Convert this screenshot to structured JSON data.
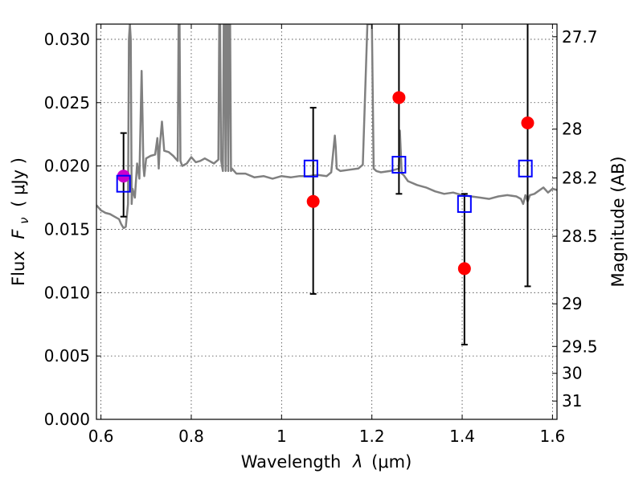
{
  "chart_data": {
    "type": "scatter",
    "title": "",
    "xlabel_text": "Wavelength",
    "xlabel_symbol": "λ",
    "xlabel_unit": "(μm)",
    "ylabel_text": "Flux",
    "ylabel_symbol": "F",
    "ylabel_subscript": "ν",
    "ylabel_unit": "( μJy )",
    "ylabel_right": "Magnitude (AB)",
    "xlim": [
      0.59,
      1.61
    ],
    "ylim": [
      0.0,
      0.0312
    ],
    "grid": true,
    "x_ticks": [
      0.6,
      0.8,
      1.0,
      1.2,
      1.4,
      1.6
    ],
    "x_tick_labels": [
      "0.6",
      "0.8",
      "1",
      "1.2",
      "1.4",
      "1.6"
    ],
    "y_ticks": [
      0.0,
      0.005,
      0.01,
      0.015,
      0.02,
      0.025,
      0.03
    ],
    "y_tick_labels": [
      "0.000",
      "0.005",
      "0.010",
      "0.015",
      "0.020",
      "0.025",
      "0.030"
    ],
    "mag_ticks": [
      27.7,
      28,
      28.2,
      28.5,
      29,
      29.5,
      30,
      31
    ],
    "mag_tick_labels": [
      "27.7",
      "28",
      "28.2",
      "28.5",
      "29",
      "29.5",
      "30",
      "31"
    ],
    "colors": {
      "model": "#808080",
      "observed": "#ff0000",
      "observed_highlight": "#cc00cc",
      "model_band": "#0000ff",
      "errorbar": "#000000"
    },
    "series": [
      {
        "type": "line",
        "x": [
          0.59,
          0.6,
          0.61,
          0.62,
          0.63,
          0.64,
          0.645,
          0.65,
          0.655,
          0.66,
          0.662,
          0.664,
          0.666,
          0.668,
          0.67,
          0.675,
          0.68,
          0.685,
          0.69,
          0.692,
          0.694,
          0.696,
          0.7,
          0.71,
          0.72,
          0.725,
          0.728,
          0.73,
          0.735,
          0.74,
          0.75,
          0.76,
          0.77,
          0.772,
          0.774,
          0.776,
          0.78,
          0.79,
          0.8,
          0.81,
          0.82,
          0.83,
          0.84,
          0.85,
          0.86,
          0.862,
          0.864,
          0.866,
          0.868,
          0.87,
          0.872,
          0.874,
          0.876,
          0.878,
          0.88,
          0.882,
          0.884,
          0.886,
          0.888,
          0.89,
          0.9,
          0.92,
          0.94,
          0.96,
          0.98,
          1.0,
          1.02,
          1.04,
          1.06,
          1.08,
          1.1,
          1.11,
          1.118,
          1.12,
          1.122,
          1.13,
          1.15,
          1.17,
          1.18,
          1.19,
          1.192,
          1.196,
          1.2,
          1.204,
          1.21,
          1.22,
          1.24,
          1.26,
          1.262,
          1.264,
          1.266,
          1.27,
          1.28,
          1.3,
          1.32,
          1.34,
          1.36,
          1.38,
          1.4,
          1.42,
          1.44,
          1.46,
          1.48,
          1.5,
          1.52,
          1.53,
          1.535,
          1.54,
          1.545,
          1.55,
          1.56,
          1.58,
          1.59,
          1.6,
          1.61
        ],
        "y": [
          0.0169,
          0.0165,
          0.0163,
          0.0162,
          0.016,
          0.0158,
          0.0154,
          0.0151,
          0.0152,
          0.017,
          0.03,
          0.0312,
          0.03,
          0.017,
          0.0182,
          0.0175,
          0.0202,
          0.019,
          0.0275,
          0.024,
          0.02,
          0.0192,
          0.0206,
          0.0208,
          0.0209,
          0.0222,
          0.0198,
          0.0214,
          0.0235,
          0.0212,
          0.0211,
          0.0208,
          0.0204,
          0.0312,
          0.0312,
          0.0204,
          0.02,
          0.0202,
          0.0207,
          0.0203,
          0.0204,
          0.0206,
          0.0204,
          0.0202,
          0.0205,
          0.0312,
          0.0312,
          0.0205,
          0.02,
          0.0196,
          0.0312,
          0.0312,
          0.0196,
          0.0312,
          0.0312,
          0.0196,
          0.0312,
          0.0312,
          0.0196,
          0.0198,
          0.0194,
          0.0194,
          0.0191,
          0.0192,
          0.019,
          0.0192,
          0.0191,
          0.0192,
          0.0192,
          0.0193,
          0.0192,
          0.0195,
          0.0224,
          0.0215,
          0.0198,
          0.0196,
          0.0197,
          0.0198,
          0.0201,
          0.0312,
          0.0312,
          0.0312,
          0.0312,
          0.0198,
          0.0196,
          0.0195,
          0.0196,
          0.0198,
          0.0228,
          0.0212,
          0.0194,
          0.0193,
          0.0188,
          0.0185,
          0.0183,
          0.018,
          0.0178,
          0.0179,
          0.0177,
          0.0176,
          0.0175,
          0.0174,
          0.0176,
          0.0177,
          0.0176,
          0.0174,
          0.017,
          0.0177,
          0.0172,
          0.0177,
          0.0178,
          0.0183,
          0.0179,
          0.0182,
          0.0181
        ]
      },
      {
        "type": "errorbar",
        "x": [
          0.65,
          1.07,
          1.26,
          1.405,
          1.545
        ],
        "y": [
          0.0192,
          0.0172,
          0.0254,
          0.0119,
          0.0234
        ],
        "yerr_low": [
          0.016,
          0.0099,
          0.0178,
          0.0059,
          0.0105
        ],
        "yerr_high": [
          0.0226,
          0.0246,
          0.0312,
          0.0178,
          0.0312
        ],
        "highlight_index": 0
      },
      {
        "type": "squares",
        "x": [
          0.65,
          1.065,
          1.26,
          1.405,
          1.54
        ],
        "y": [
          0.0186,
          0.0198,
          0.0201,
          0.017,
          0.0198
        ]
      }
    ]
  }
}
